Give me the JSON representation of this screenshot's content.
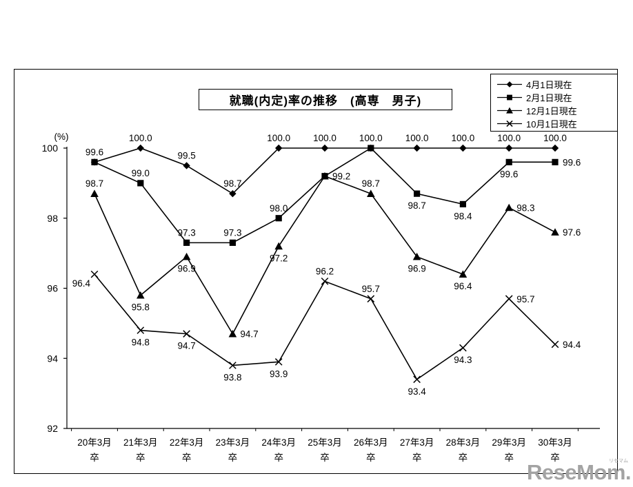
{
  "chart_data": {
    "type": "line",
    "title": "就職(内定)率の推移　(高専　男子)",
    "ylabel": "(%)",
    "ylim": [
      92,
      100
    ],
    "yticks": [
      100,
      98,
      96,
      94,
      92
    ],
    "grid": false,
    "legend_position": "top-right",
    "category_suffix": "卒",
    "categories": [
      "20年3月",
      "21年3月",
      "22年3月",
      "23年3月",
      "24年3月",
      "25年3月",
      "26年3月",
      "27年3月",
      "28年3月",
      "29年3月",
      "30年3月"
    ],
    "series": [
      {
        "name": "4月1日現在",
        "marker": "diamond",
        "color": "#000000",
        "values": [
          99.6,
          100.0,
          99.5,
          98.7,
          100.0,
          100.0,
          100.0,
          100.0,
          100.0,
          100.0,
          100.0
        ]
      },
      {
        "name": "2月1日現在",
        "marker": "square",
        "color": "#000000",
        "values": [
          99.6,
          99.0,
          97.3,
          97.3,
          98.0,
          99.2,
          100.0,
          98.7,
          98.4,
          99.6,
          99.6
        ]
      },
      {
        "name": "12月1日現在",
        "marker": "triangle",
        "color": "#000000",
        "values": [
          98.7,
          95.8,
          96.9,
          94.7,
          97.2,
          99.2,
          98.7,
          96.9,
          96.4,
          98.3,
          97.6
        ]
      },
      {
        "name": "10月1日現在",
        "marker": "cross",
        "color": "#000000",
        "values": [
          96.4,
          94.8,
          94.7,
          93.8,
          93.9,
          96.2,
          95.7,
          93.4,
          94.3,
          95.7,
          94.4
        ]
      }
    ]
  },
  "watermark": {
    "text": "ReseMom.",
    "small_text": "リセマム"
  }
}
